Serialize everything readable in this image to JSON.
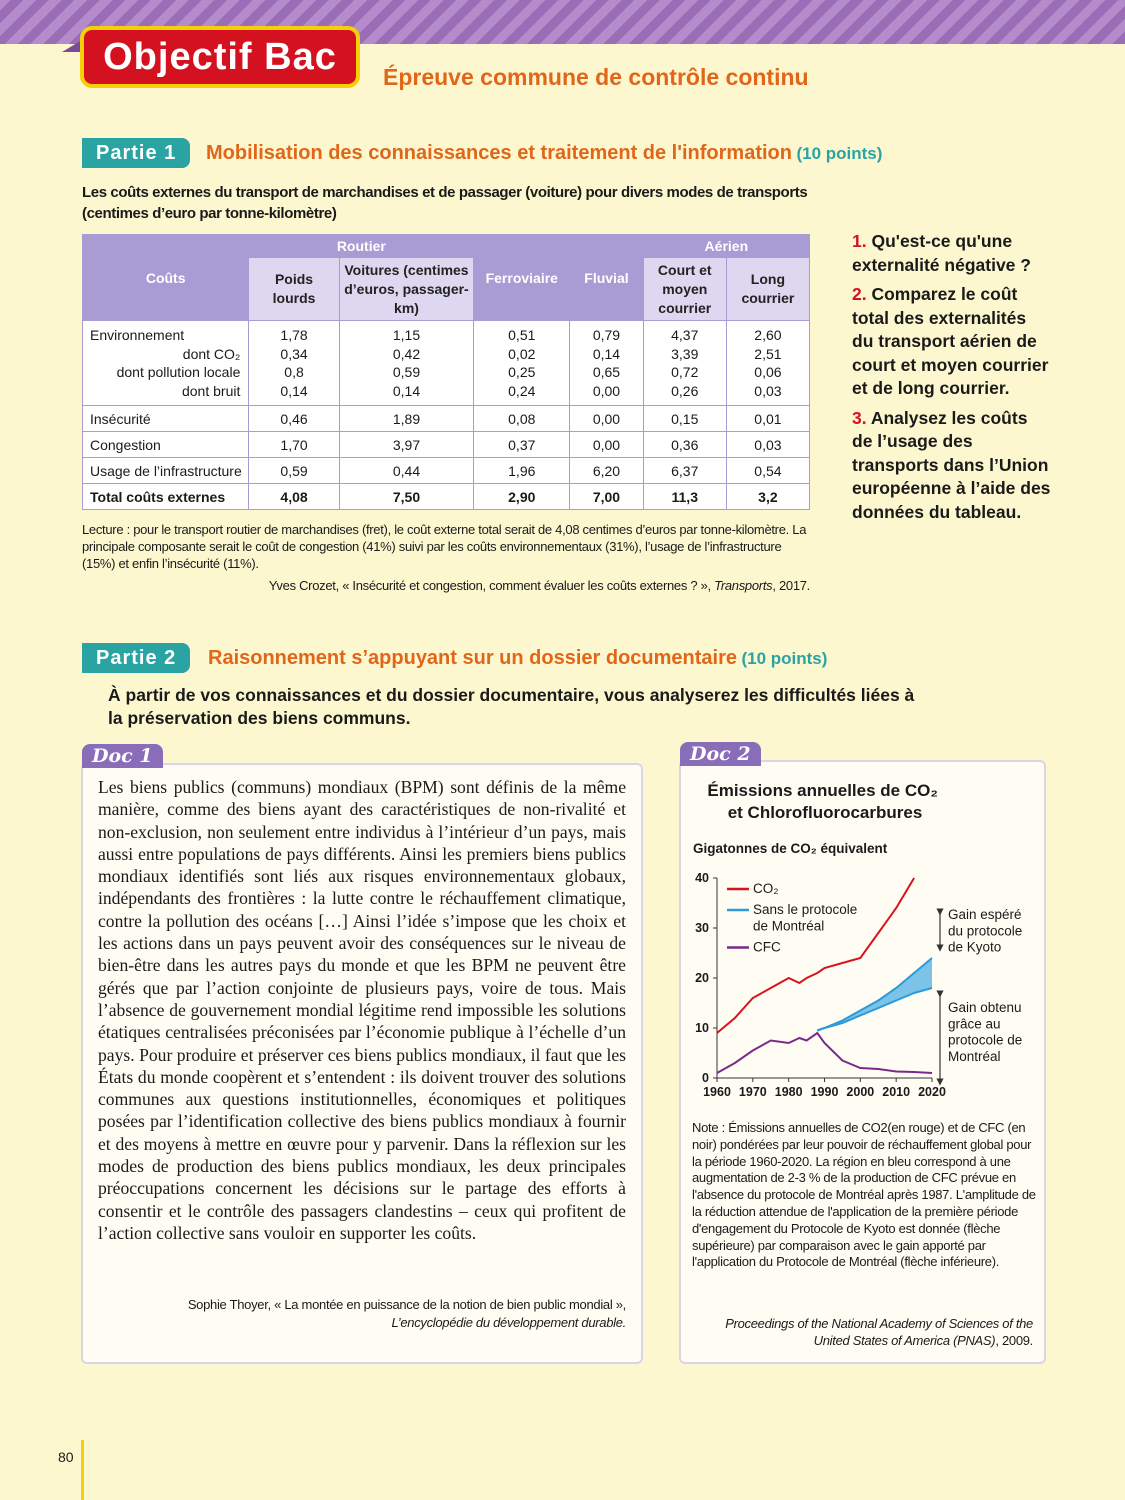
{
  "header": {
    "badge": "Objectif Bac",
    "subtitle": "Épreuve commune de contrôle continu"
  },
  "part1": {
    "label": "Partie 1",
    "title": "Mobilisation des connaissances et traitement de l'information",
    "points": "(10 points)",
    "table_caption": "Les coûts externes du transport de marchandises et de passager (voiture) pour divers modes de transports (centimes d’euro par tonne-kilomètre)",
    "table": {
      "header_top": [
        "Coûts",
        "Routier",
        "Ferroviaire",
        "Fluvial",
        "Aérien"
      ],
      "header_sub": [
        "Poids lourds",
        "Voitures (centimes d’euros, passager-km)",
        "Court et moyen courrier",
        "Long courrier"
      ],
      "rows": [
        {
          "label": "Environnement",
          "cells": [
            "1,78",
            "1,15",
            "0,51",
            "0,79",
            "4,37",
            "2,60"
          ]
        },
        {
          "label": "dont CO₂",
          "cells": [
            "0,34",
            "0,42",
            "0,02",
            "0,14",
            "3,39",
            "2,51"
          ]
        },
        {
          "label": "dont pollution locale",
          "cells": [
            "0,8",
            "0,59",
            "0,25",
            "0,65",
            "0,72",
            "0,06"
          ]
        },
        {
          "label": "dont bruit",
          "cells": [
            "0,14",
            "0,14",
            "0,24",
            "0,00",
            "0,26",
            "0,03"
          ]
        },
        {
          "label": "Insécurité",
          "cells": [
            "0,46",
            "1,89",
            "0,08",
            "0,00",
            "0,15",
            "0,01"
          ]
        },
        {
          "label": "Congestion",
          "cells": [
            "1,70",
            "3,97",
            "0,37",
            "0,00",
            "0,36",
            "0,03"
          ]
        },
        {
          "label": "Usage de l’infrastructure",
          "cells": [
            "0,59",
            "0,44",
            "1,96",
            "6,20",
            "6,37",
            "0,54"
          ]
        },
        {
          "label": "Total coûts externes",
          "cells": [
            "4,08",
            "7,50",
            "2,90",
            "7,00",
            "11,3",
            "3,2"
          ]
        }
      ]
    },
    "reading_note": "Lecture : pour le transport routier de marchandises (fret), le coût externe total serait de 4,08 centimes d’euros par tonne-kilomètre. La principale composante serait le coût de congestion (41%) suivi par les coûts environnementaux (31%), l’usage de l’infrastructure (15%) et enfin l’insécurité (11%).",
    "source": {
      "author": "Yves Crozet, « Insécurité et congestion, comment évaluer les coûts externes ? », ",
      "work": "Transports",
      "year": ", 2017."
    },
    "questions": [
      {
        "number": "1.",
        "text": "Qu'est-ce qu'une externalité négative ?"
      },
      {
        "number": "2.",
        "text": "Comparez le coût total des externalités du transport aérien de court et moyen courrier et de long courrier."
      },
      {
        "number": "3.",
        "text": "Analysez les coûts de l’usage des transports dans l’Union européenne à l’aide des données du tableau."
      }
    ]
  },
  "part2": {
    "label": "Partie 2",
    "title": "Raisonnement s’appuyant sur un dossier documentaire",
    "points": "(10 points)",
    "instruction": "À partir de vos connaissances et du dossier documentaire, vous analyserez les difficultés liées à la préservation des biens communs.",
    "doc1": {
      "label": "Doc 1",
      "text": "Les biens publics (communs) mondiaux (BPM) sont définis de la même manière, comme des biens ayant des caractéristiques de non-rivalité et non-exclusion, non seulement entre individus à l’intérieur d’un pays, mais aussi entre populations de pays différents. Ainsi les premiers biens publics mondiaux identifiés sont liés aux risques environnementaux globaux, indépendants des frontières : la lutte contre le réchauffement climatique, contre la pollution des océans […] Ainsi l’idée s’impose que les choix et les actions dans un pays peuvent avoir des conséquences sur le niveau de bien-être dans les autres pays du monde et que les BPM ne peuvent être gérés que par l’action conjointe de plusieurs pays, voire de tous. Mais l’absence de gouvernement mondial légitime rend impossible les solutions étatiques centralisées préconisées par l’économie publique à l’échelle d’un pays. Pour produire et préserver ces biens publics mondiaux, il faut que les États du monde coopèrent et s’entendent : ils doivent trouver des solutions communes aux questions institutionnelles, économiques et politiques posées par l’identification collective des biens publics mondiaux à fournir et des moyens à mettre en œuvre pour y parvenir. Dans la réflexion sur les modes de production des biens publics mondiaux, les deux principales préoccupations concernent les décisions sur le partage des efforts à consentir et le contrôle des passagers clandestins – ceux qui profitent de l’action collective sans vouloir en supporter les coûts.",
      "source": {
        "author": "Sophie Thoyer, « La montée en puissance de la notion de bien public mondial »,",
        "work": "L’encyclopédie du développement durable."
      }
    },
    "doc2": {
      "label": "Doc 2",
      "note": "Note : Émissions annuelles de CO2(en rouge) et de CFC (en noir) pondérées par leur pouvoir de réchauffement global pour la période 1960-2020. La région en bleu correspond à une augmentation de 2-3 % de la production de CFC prévue en l'absence du protocole de Montréal après 1987. L'amplitude de la réduction attendue de l'application de la première période d'engagement du Protocole de Kyoto est donnée (flèche supérieure) par comparaison avec le gain apporté par l'application du Protocole de Montréal (flèche inférieure).",
      "source": {
        "work": "Proceedings of the National Academy of Sciences of the United States of America (PNAS)",
        "year": ", 2009."
      }
    }
  },
  "chart_data": {
    "type": "line",
    "title": "Émissions annuelles de CO₂ et Chlorofluorocarbures",
    "y_label": "Gigatonnes de CO₂ équivalent",
    "x": [
      1960,
      1965,
      1970,
      1975,
      1980,
      1983,
      1985,
      1988,
      1990,
      1995,
      2000,
      2005,
      2010,
      2015,
      2020
    ],
    "series": [
      {
        "name": "CO₂",
        "color": "#d7141e",
        "values": [
          9,
          12,
          16,
          18,
          20,
          19,
          20,
          21,
          22,
          23,
          24,
          29,
          34,
          40,
          null
        ]
      },
      {
        "name": "Sans le protocole de Montréal",
        "color": "#2b9ad8",
        "values": [
          null,
          null,
          null,
          null,
          null,
          null,
          null,
          9.5,
          10,
          11.5,
          13.5,
          15.5,
          18,
          21,
          24
        ]
      },
      {
        "color": "#2b9ad8",
        "values": [
          null,
          null,
          null,
          null,
          null,
          null,
          null,
          9.5,
          10,
          11,
          12.5,
          14,
          15.5,
          17,
          18
        ]
      },
      {
        "name": "CFC",
        "color": "#7b2a8c",
        "values": [
          1,
          3,
          5.5,
          7.5,
          7,
          8,
          7.5,
          9,
          7,
          3.5,
          2,
          1.8,
          1.3,
          1.2,
          1
        ]
      }
    ],
    "xlim": [
      1960,
      2020
    ],
    "xticks": [
      1960,
      1970,
      1980,
      1990,
      2000,
      2010,
      2020
    ],
    "ylim": [
      0,
      40
    ],
    "yticks": [
      0,
      10,
      20,
      30,
      40
    ],
    "grid": false,
    "annotations": [
      "Gain espéré du protocole de Kyoto",
      "Gain obtenu grâce au protocole de Montréal"
    ]
  },
  "page_number": "80"
}
